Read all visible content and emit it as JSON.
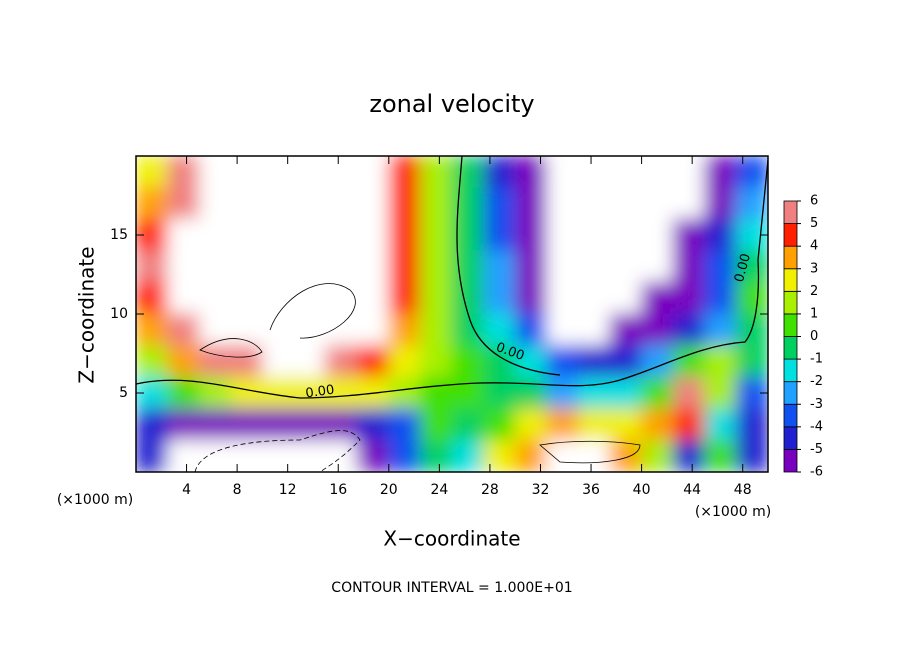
{
  "chart_data": {
    "type": "contour",
    "title": "zonal velocity",
    "xlabel": "X−coordinate",
    "ylabel": "Z−coordinate",
    "x_unit_left": "(×1000 m)",
    "x_unit_right": "(×1000 m)",
    "annotation": "CONTOUR INTERVAL = 1.000E+01",
    "contour_labels": [
      "0.00",
      "0.00",
      "0.00"
    ],
    "xlim": [
      0,
      50
    ],
    "ylim": [
      0,
      20
    ],
    "xticks": [
      4,
      8,
      12,
      16,
      20,
      24,
      28,
      32,
      36,
      40,
      44,
      48
    ],
    "yticks": [
      5,
      10,
      15
    ],
    "x": [
      1.25,
      3.75,
      6.25,
      8.75,
      11.25,
      13.75,
      16.25,
      18.75,
      21.25,
      23.75,
      26.25,
      28.75,
      31.25,
      33.75,
      36.25,
      38.75,
      41.25,
      43.75,
      46.25,
      48.75
    ],
    "y": [
      19,
      17,
      15,
      13,
      11,
      9,
      7,
      5,
      3,
      1
    ],
    "z": [
      [
        3,
        6,
        8,
        8,
        8,
        8,
        8,
        8,
        5,
        2,
        0,
        -4,
        -5,
        -8,
        -8,
        -8,
        -8,
        -8,
        -6,
        -3
      ],
      [
        4,
        6,
        8,
        8,
        8,
        8,
        8,
        8,
        5,
        2,
        0,
        -3,
        -5,
        -8,
        -8,
        -8,
        -8,
        -8,
        -5,
        -2
      ],
      [
        5,
        8,
        8,
        8,
        8,
        8,
        8,
        8,
        5,
        2,
        0,
        -3,
        -5,
        -8,
        -8,
        -8,
        -8,
        -6,
        -4,
        -1
      ],
      [
        6,
        8,
        8,
        8,
        8,
        8,
        8,
        8,
        5,
        2,
        0,
        -2,
        -5,
        -8,
        -8,
        -8,
        -8,
        -5,
        -3,
        0
      ],
      [
        5,
        8,
        8,
        8,
        8,
        8,
        8,
        8,
        5,
        2,
        0,
        -2,
        -5,
        -8,
        -8,
        -8,
        -6,
        -5,
        -3,
        1
      ],
      [
        4,
        6,
        8,
        8,
        8,
        8,
        8,
        8,
        4,
        2,
        0,
        -1,
        -3,
        -8,
        -8,
        -6,
        -5,
        -4,
        -2,
        0
      ],
      [
        2,
        4,
        6,
        6,
        7,
        7,
        6,
        5,
        3,
        2,
        1,
        0,
        -1,
        -3,
        -4,
        -4,
        -2,
        1,
        2,
        0
      ],
      [
        -1,
        1,
        2,
        3,
        3,
        3,
        3,
        3,
        2,
        1,
        1,
        0,
        0,
        -2,
        -1,
        -1,
        1,
        6,
        2,
        -3
      ],
      [
        -4,
        -5,
        -6,
        -5,
        -6,
        -5,
        -5,
        -4,
        -3,
        1,
        0,
        1,
        3,
        4,
        3,
        3,
        4,
        5,
        -1,
        -4
      ],
      [
        -4,
        -8,
        -8,
        -8,
        -8,
        -8,
        -8,
        -5,
        -3,
        0,
        -1,
        3,
        4,
        8,
        8,
        4,
        2,
        -4,
        1,
        -4
      ]
    ],
    "colorbar": {
      "levels": [
        -6,
        -5,
        -4,
        -3,
        -2,
        -1,
        0,
        1,
        2,
        3,
        4,
        5,
        6
      ],
      "colors": [
        "#7a00c0",
        "#2020d0",
        "#1050f0",
        "#20a0ff",
        "#00e0e0",
        "#00d060",
        "#40e000",
        "#a8f000",
        "#f0f000",
        "#ffa000",
        "#ff2000",
        "#f08080"
      ]
    }
  }
}
